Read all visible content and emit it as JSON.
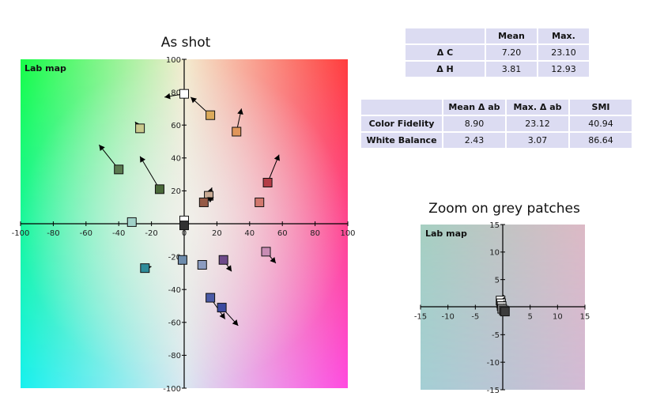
{
  "titles": {
    "main": "As shot",
    "zoom": "Zoom on grey patches"
  },
  "table_chroma_hue": {
    "headers": [
      "",
      "Mean",
      "Max."
    ],
    "rows": [
      {
        "label": "Δ C",
        "mean": "7.20",
        "max": "23.10"
      },
      {
        "label": "Δ H",
        "mean": "3.81",
        "max": "12.93"
      }
    ]
  },
  "table_fidelity": {
    "headers": [
      "",
      "Mean Δ ab",
      "Max. Δ ab",
      "SMI"
    ],
    "rows": [
      {
        "label": "Color Fidelity",
        "mean": "8.90",
        "max": "23.12",
        "smi": "40.94"
      },
      {
        "label": "White Balance",
        "mean": "2.43",
        "max": "3.07",
        "smi": "86.64"
      }
    ]
  },
  "chart_data": [
    {
      "type": "scatter",
      "title": "As shot",
      "panel_label": "Lab map",
      "xlim": [
        -100,
        100
      ],
      "ylim": [
        -100,
        100
      ],
      "xticks": [
        -100,
        -80,
        -60,
        -40,
        -20,
        0,
        20,
        40,
        60,
        80,
        100
      ],
      "yticks": [
        -100,
        -80,
        -60,
        -40,
        -20,
        20,
        40,
        60,
        80,
        100
      ],
      "patches": [
        {
          "a": 0,
          "b": 79,
          "ta": -12,
          "tb": 77,
          "color": "#ffffff"
        },
        {
          "a": 16,
          "b": 66,
          "ta": 4,
          "tb": 77,
          "color": "#dcaa5a"
        },
        {
          "a": 32,
          "b": 56,
          "ta": 35,
          "tb": 70,
          "color": "#e0965a"
        },
        {
          "a": -27,
          "b": 58,
          "ta": -30,
          "tb": 62,
          "color": "#c9c98c"
        },
        {
          "a": -40,
          "b": 33,
          "ta": -52,
          "tb": 48,
          "color": "#5a7a50"
        },
        {
          "a": -15,
          "b": 21,
          "ta": -27,
          "tb": 41,
          "color": "#4a6a3a"
        },
        {
          "a": 51,
          "b": 25,
          "ta": 58,
          "tb": 42,
          "color": "#b43c46"
        },
        {
          "a": 46,
          "b": 13,
          "ta": 46,
          "tb": 13,
          "color": "#d2786e"
        },
        {
          "a": 15,
          "b": 17,
          "ta": 17,
          "tb": 22,
          "color": "#c8aa94"
        },
        {
          "a": 12,
          "b": 13,
          "ta": 18,
          "tb": 16,
          "color": "#965a46"
        },
        {
          "a": -32,
          "b": 1,
          "ta": -33,
          "tb": 3,
          "color": "#a0d2c8"
        },
        {
          "a": 0,
          "b": 2,
          "ta": 0,
          "tb": 2,
          "color": "#ffffff"
        },
        {
          "a": 0,
          "b": -1,
          "ta": 0,
          "tb": -1,
          "color": "#323232"
        },
        {
          "a": -1,
          "b": -22,
          "ta": -2,
          "tb": -25,
          "color": "#6e8cac"
        },
        {
          "a": 11,
          "b": -25,
          "ta": 11,
          "tb": -25,
          "color": "#8c9cc0"
        },
        {
          "a": 24,
          "b": -22,
          "ta": 29,
          "tb": -29,
          "color": "#6e4a8a"
        },
        {
          "a": 50,
          "b": -17,
          "ta": 56,
          "tb": -24,
          "color": "#c88cb4"
        },
        {
          "a": -24,
          "b": -27,
          "ta": -20,
          "tb": -26,
          "color": "#2e8c9a"
        },
        {
          "a": 16,
          "b": -45,
          "ta": 25,
          "tb": -58,
          "color": "#4a5aa6"
        },
        {
          "a": 23,
          "b": -51,
          "ta": 33,
          "tb": -62,
          "color": "#3c4aa0"
        }
      ]
    },
    {
      "type": "scatter",
      "title": "Zoom on grey patches",
      "panel_label": "Lab map",
      "xlim": [
        -15,
        15
      ],
      "ylim": [
        -15,
        15
      ],
      "xticks": [
        -15,
        -10,
        -5,
        5,
        10,
        15
      ],
      "yticks": [
        -15,
        -10,
        -5,
        5,
        10,
        15
      ],
      "patches": [
        {
          "a": -0.4,
          "b": 1.2,
          "ta": 0.2,
          "tb": 2.2,
          "color": "#ffffff"
        },
        {
          "a": -0.3,
          "b": 0.7,
          "ta": 0.3,
          "tb": 1.8,
          "color": "#f0f0f0"
        },
        {
          "a": -0.2,
          "b": 0.2,
          "ta": 0.3,
          "tb": 1.2,
          "color": "#d2d2d2"
        },
        {
          "a": -0.1,
          "b": -0.3,
          "ta": 0.2,
          "tb": 0.6,
          "color": "#a8a8a8"
        },
        {
          "a": 0.2,
          "b": -0.6,
          "ta": 0.5,
          "tb": 0.2,
          "color": "#6e6e6e"
        },
        {
          "a": 0.4,
          "b": -0.8,
          "ta": 0.8,
          "tb": -0.3,
          "color": "#3c3c3c"
        }
      ]
    }
  ]
}
